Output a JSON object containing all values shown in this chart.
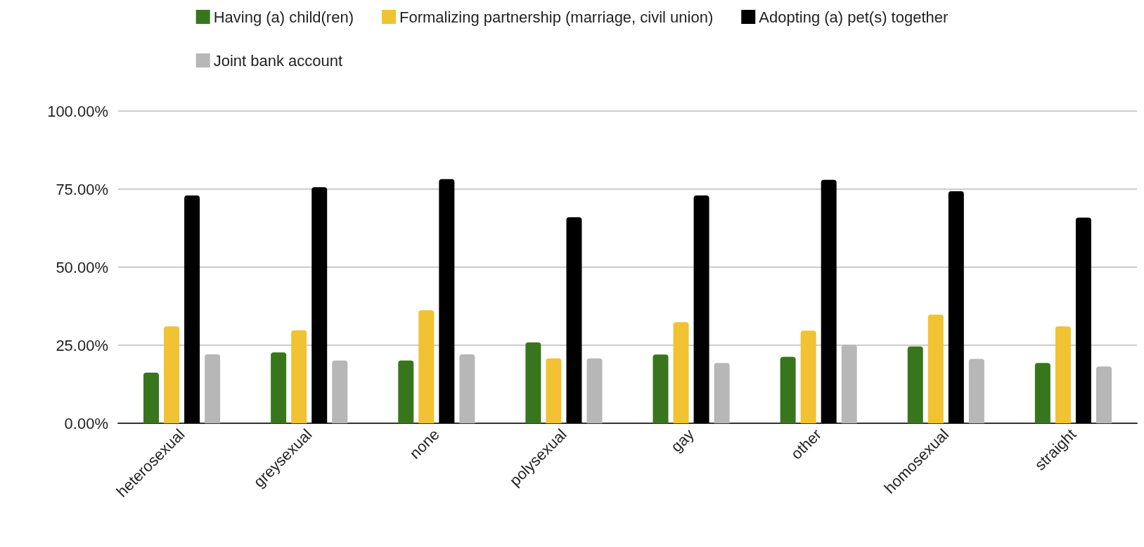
{
  "chart_data": {
    "type": "bar",
    "categories": [
      "heterosexual",
      "greysexual",
      "none",
      "polysexual",
      "gay",
      "other",
      "homosexual",
      "straight"
    ],
    "series": [
      {
        "name": "Having (a) child(ren)",
        "color": "#38761d",
        "values": [
          16.2,
          22.7,
          20.1,
          25.9,
          22.0,
          21.3,
          24.6,
          19.3
        ]
      },
      {
        "name": "Formalizing partnership (marriage, civil union)",
        "color": "#f1c232",
        "values": [
          31.0,
          29.8,
          36.2,
          20.8,
          32.4,
          29.7,
          34.8,
          31.0
        ]
      },
      {
        "name": "Adopting (a) pet(s) together",
        "color": "#000000",
        "values": [
          73.0,
          75.6,
          78.2,
          66.0,
          73.0,
          78.0,
          74.3,
          65.9
        ]
      },
      {
        "name": "Joint bank account",
        "color": "#b7b7b7",
        "values": [
          22.1,
          20.1,
          22.1,
          20.8,
          19.3,
          25.1,
          20.6,
          18.2
        ]
      }
    ],
    "ylim": [
      0,
      100
    ],
    "yticks": [
      {
        "value": 0,
        "label": "0.00%"
      },
      {
        "value": 25,
        "label": "25.00%"
      },
      {
        "value": 50,
        "label": "50.00%"
      },
      {
        "value": 75,
        "label": "75.00%"
      },
      {
        "value": 100,
        "label": "100.00%"
      }
    ],
    "grid": "y",
    "legend": "top"
  }
}
